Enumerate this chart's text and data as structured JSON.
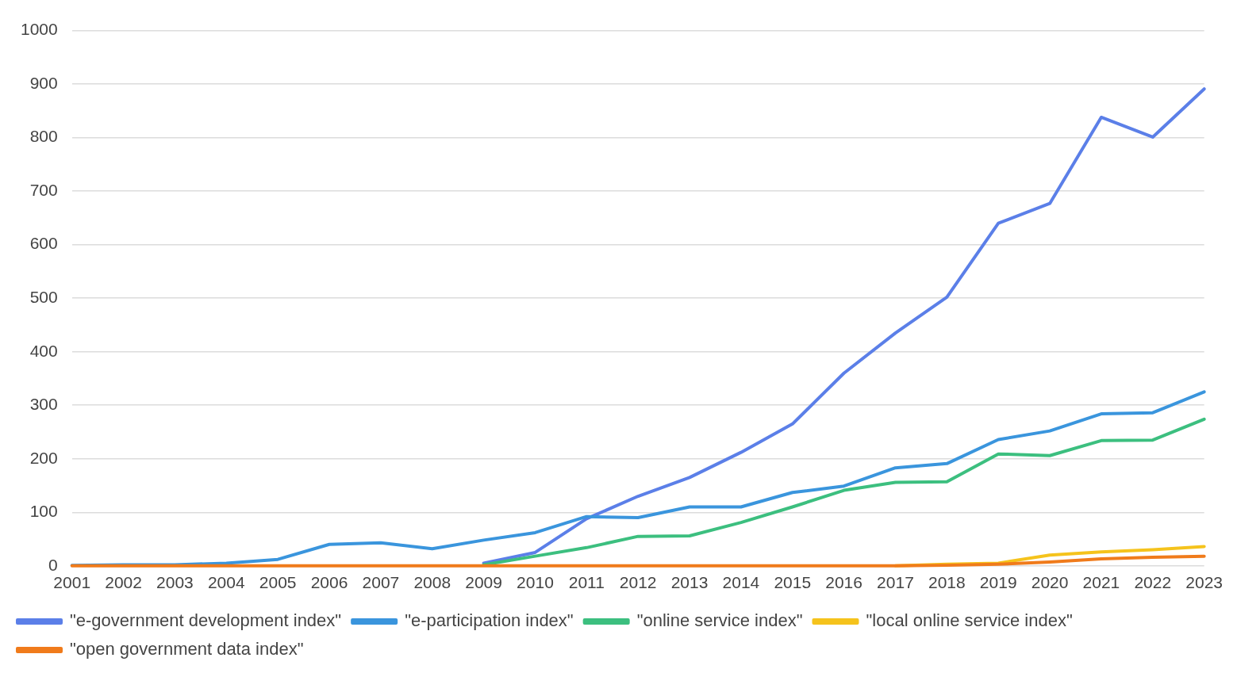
{
  "chart_data": {
    "type": "line",
    "categories": [
      "2001",
      "2002",
      "2003",
      "2004",
      "2005",
      "2006",
      "2007",
      "2008",
      "2009",
      "2010",
      "2011",
      "2012",
      "2013",
      "2014",
      "2015",
      "2016",
      "2017",
      "2018",
      "2019",
      "2020",
      "2021",
      "2022",
      "2023"
    ],
    "series": [
      {
        "name": "\"e-government development index\"",
        "color": "#5b7fe8",
        "values": [
          null,
          null,
          null,
          null,
          null,
          null,
          null,
          null,
          5,
          25,
          88,
          130,
          165,
          212,
          265,
          360,
          435,
          502,
          640,
          677,
          838,
          801,
          891
        ]
      },
      {
        "name": "\"e-participation index\"",
        "color": "#3a95dd",
        "values": [
          1,
          2,
          2,
          5,
          12,
          40,
          43,
          32,
          48,
          62,
          92,
          90,
          110,
          110,
          137,
          149,
          183,
          191,
          236,
          252,
          284,
          286,
          325
        ]
      },
      {
        "name": "\"online service index\"",
        "color": "#3cbf7f",
        "values": [
          null,
          null,
          null,
          null,
          null,
          null,
          null,
          null,
          2,
          18,
          34,
          55,
          56,
          81,
          110,
          141,
          156,
          157,
          209,
          206,
          234,
          235,
          274
        ]
      },
      {
        "name": "\"local online service index\"",
        "color": "#f5c31c",
        "values": [
          null,
          null,
          null,
          null,
          null,
          null,
          null,
          null,
          null,
          null,
          null,
          null,
          null,
          null,
          null,
          null,
          0,
          3,
          5,
          20,
          26,
          30,
          36
        ]
      },
      {
        "name": "\"open government data index\"",
        "color": "#f07b1b",
        "values": [
          0,
          0,
          0,
          0,
          0,
          0,
          0,
          0,
          0,
          0,
          0,
          0,
          0,
          0,
          0,
          0,
          0,
          1,
          3,
          7,
          13,
          16,
          18
        ]
      }
    ],
    "ylim": [
      0,
      1000
    ],
    "yticks": [
      0,
      100,
      200,
      300,
      400,
      500,
      600,
      700,
      800,
      900,
      1000
    ],
    "grid": "y",
    "legend": "bottom",
    "marker": "none",
    "line_style": "solid"
  }
}
